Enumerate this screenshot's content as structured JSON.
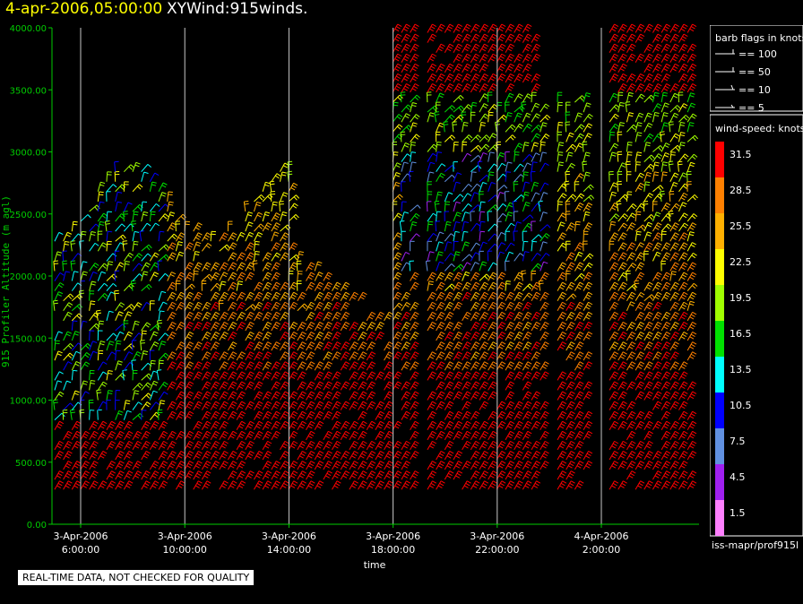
{
  "header": {
    "datetime": "4-apr-2006,05:00:00",
    "product": "XYWind:915winds."
  },
  "notice": "REAL-TIME DATA, NOT CHECKED FOR QUALITY",
  "legend": {
    "barb_title": "barb flags in knots",
    "barb_items": [
      "== 100",
      "== 50",
      "== 10",
      "== 5"
    ],
    "speed_title": "wind-speed: knots",
    "speed_levels": [
      {
        "label": "31.5",
        "color": "#ff0000"
      },
      {
        "label": "28.5",
        "color": "#ff8000"
      },
      {
        "label": "25.5",
        "color": "#ffb000"
      },
      {
        "label": "22.5",
        "color": "#ffff00"
      },
      {
        "label": "19.5",
        "color": "#a0ff00"
      },
      {
        "label": "16.5",
        "color": "#00e000"
      },
      {
        "label": "13.5",
        "color": "#00ffff"
      },
      {
        "label": "10.5",
        "color": "#0000ff"
      },
      {
        "label": "7.5",
        "color": "#6090e0"
      },
      {
        "label": "4.5",
        "color": "#a020f0"
      },
      {
        "label": "1.5",
        "color": "#ff80ff"
      }
    ],
    "source": "iss-mapr/prof915l"
  },
  "chart_data": {
    "type": "scatter",
    "title": "",
    "xlabel": "time",
    "ylabel": "915 Profiler Altitude (m agl)",
    "ylim": [
      0,
      4000
    ],
    "yticks": [
      "0.00",
      "500.00",
      "1000.00",
      "1500.00",
      "2000.00",
      "2500.00",
      "3000.00",
      "3500.00",
      "4000.00"
    ],
    "xticks": [
      {
        "date": "3-Apr-2006",
        "time": "6:00:00"
      },
      {
        "date": "3-Apr-2006",
        "time": "10:00:00"
      },
      {
        "date": "3-Apr-2006",
        "time": "14:00:00"
      },
      {
        "date": "3-Apr-2006",
        "time": "18:00:00"
      },
      {
        "date": "3-Apr-2006",
        "time": "22:00:00"
      },
      {
        "date": "4-Apr-2006",
        "time": "2:00:00"
      }
    ],
    "x_hours_range": [
      5.0,
      29.5
    ],
    "grid": "vertical",
    "colors": {
      "axis": "#00cc00",
      "grid": "#c8c8c8"
    },
    "note": "Wind barbs colored by wind speed (knots); profiles approx. every 20 minutes from ~300 m to ~4000 m."
  }
}
